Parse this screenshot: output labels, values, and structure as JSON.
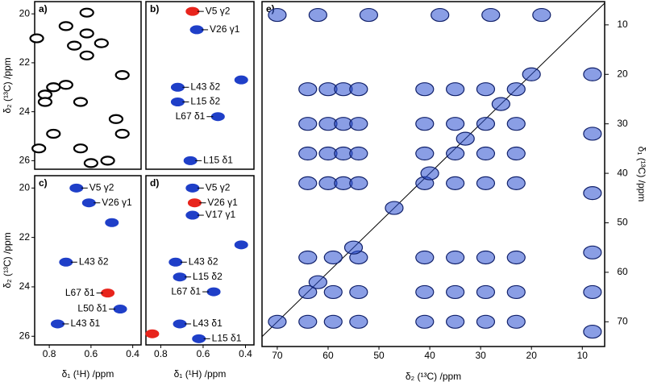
{
  "chart_data": [
    {
      "type": "contour",
      "panel_label": "a)",
      "xlim": [
        0.87,
        0.36
      ],
      "ylim": [
        26.35,
        19.5
      ],
      "yticks": [
        20,
        22,
        24,
        26
      ],
      "y_label": "δ₂ (¹³C) /ppm",
      "peaks": {
        "x": [
          0.62,
          0.72,
          0.62,
          0.55,
          0.68,
          0.62,
          0.86,
          0.45,
          0.72,
          0.78,
          0.82,
          0.82,
          0.65,
          0.48,
          0.78,
          0.45,
          0.65,
          0.85,
          0.6,
          0.52
        ],
        "y": [
          19.95,
          20.5,
          20.8,
          21.2,
          21.3,
          21.7,
          21.0,
          22.5,
          22.9,
          23.0,
          23.3,
          23.6,
          23.6,
          24.3,
          24.9,
          24.9,
          25.5,
          25.5,
          26.1,
          26.0
        ],
        "colors": [
          "#000000",
          "#000000",
          "#000000",
          "#000000",
          "#000000",
          "#000000",
          "#000000",
          "#000000",
          "#000000",
          "#000000",
          "#000000",
          "#000000",
          "#000000",
          "#000000",
          "#000000",
          "#000000",
          "#000000",
          "#000000",
          "#000000",
          "#000000"
        ]
      }
    },
    {
      "type": "contour",
      "panel_label": "b)",
      "xlim": [
        0.87,
        0.36
      ],
      "ylim": [
        26.35,
        19.5
      ],
      "peaks": {
        "x": [
          0.65,
          0.63,
          0.72,
          0.72,
          0.53,
          0.66,
          0.42
        ],
        "y": [
          19.9,
          20.65,
          23.0,
          23.6,
          24.2,
          26.0,
          22.7
        ],
        "labels": [
          "V5 γ2",
          "V26 γ1",
          "L43 δ2",
          "L15 δ2",
          "L67 δ1",
          "L15 δ1",
          null
        ],
        "colors": [
          "#e8241c",
          "#1f3fc8",
          "#1f3fc8",
          "#1f3fc8",
          "#1f3fc8",
          "#1f3fc8",
          "#1f3fc8"
        ]
      }
    },
    {
      "type": "contour",
      "panel_label": "c)",
      "xlim": [
        0.87,
        0.36
      ],
      "ylim": [
        26.35,
        19.5
      ],
      "xticks": [
        0.8,
        0.6,
        0.4
      ],
      "yticks": [
        20,
        22,
        24,
        26
      ],
      "x_label": "δ₁ (¹H) /ppm",
      "y_label": "δ₂ (¹³C) /ppm",
      "peaks": {
        "x": [
          0.67,
          0.61,
          0.72,
          0.52,
          0.46,
          0.76,
          0.5
        ],
        "y": [
          20.0,
          20.6,
          23.0,
          24.25,
          24.9,
          25.5,
          21.4
        ],
        "labels": [
          "V5 γ2",
          "V26 γ1",
          "L43 δ2",
          "L67 δ1",
          "L50 δ1",
          "L43 δ1",
          null
        ],
        "colors": [
          "#1f3fc8",
          "#1f3fc8",
          "#1f3fc8",
          "#e8241c",
          "#1f3fc8",
          "#1f3fc8",
          "#1f3fc8"
        ]
      }
    },
    {
      "type": "contour",
      "panel_label": "d)",
      "xlim": [
        0.87,
        0.36
      ],
      "ylim": [
        26.35,
        19.5
      ],
      "xticks": [
        0.8,
        0.6,
        0.4
      ],
      "x_label": "δ₁ (¹H) /ppm",
      "peaks": {
        "x": [
          0.65,
          0.64,
          0.65,
          0.73,
          0.71,
          0.55,
          0.71,
          0.62,
          0.42,
          0.84
        ],
        "y": [
          20.0,
          20.6,
          21.1,
          23.0,
          23.6,
          24.2,
          25.5,
          26.1,
          22.3,
          25.9
        ],
        "labels": [
          "V5 γ2",
          "V26 γ1",
          "V17 γ1",
          "L43 δ2",
          "L15 δ2",
          "L67 δ1",
          "L43 δ1",
          "L15 δ1",
          null,
          null
        ],
        "colors": [
          "#1f3fc8",
          "#e8241c",
          "#1f3fc8",
          "#1f3fc8",
          "#1f3fc8",
          "#1f3fc8",
          "#1f3fc8",
          "#1f3fc8",
          "#1f3fc8",
          "#e8241c"
        ]
      }
    },
    {
      "type": "spectrum",
      "panel_label": "e)",
      "xlim": [
        73,
        5.6
      ],
      "ylim": [
        75,
        5.3
      ],
      "xticks": [
        70,
        60,
        50,
        40,
        30,
        20,
        10
      ],
      "yticks": [
        10,
        20,
        30,
        40,
        50,
        60,
        70
      ],
      "x_label": "δ₂ (¹³C) /ppm",
      "y_label": "δ₁ (¹³C) /ppm",
      "diagonal": true,
      "color": "#2a4fd0",
      "peaks": {
        "x": [
          64,
          60,
          57,
          54,
          64,
          60,
          57,
          54,
          64,
          60,
          57,
          54,
          64,
          60,
          57,
          54,
          41,
          35,
          29,
          23,
          41,
          35,
          29,
          23,
          41,
          35,
          29,
          23,
          41,
          35,
          29,
          23,
          64,
          59,
          54,
          64,
          59,
          54,
          64,
          59,
          54,
          41,
          35,
          29,
          23,
          41,
          35,
          29,
          23,
          41,
          35,
          29,
          23,
          70,
          62,
          52,
          38,
          28,
          18,
          8,
          8,
          8,
          8,
          8,
          8,
          70,
          62,
          55,
          47,
          40,
          33,
          26,
          20
        ],
        "y": [
          23,
          23,
          23,
          23,
          30,
          30,
          30,
          30,
          36,
          36,
          36,
          36,
          42,
          42,
          42,
          42,
          23,
          23,
          23,
          23,
          30,
          30,
          30,
          30,
          36,
          36,
          36,
          36,
          42,
          42,
          42,
          42,
          57,
          57,
          57,
          64,
          64,
          64,
          70,
          70,
          70,
          57,
          57,
          57,
          57,
          64,
          64,
          64,
          64,
          70,
          70,
          70,
          70,
          8,
          8,
          8,
          8,
          8,
          8,
          20,
          32,
          44,
          56,
          64,
          72,
          70,
          62,
          55,
          47,
          40,
          33,
          26,
          20
        ]
      }
    }
  ]
}
